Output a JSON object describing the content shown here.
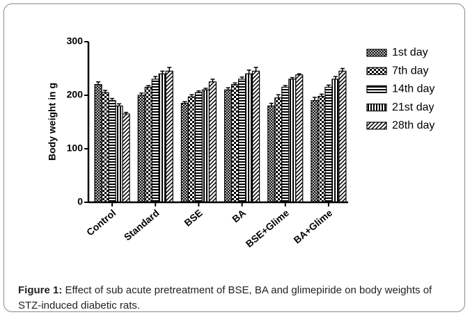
{
  "chart_data": {
    "type": "bar",
    "y_label": "Body weight in g",
    "categories": [
      "Control",
      "Standard",
      "BSE",
      "BA",
      "BSE+Glime",
      "BA+Glime"
    ],
    "series": [
      {
        "name": "1st day",
        "color": "#000000",
        "values": [
          220,
          200,
          185,
          210,
          180,
          190
        ],
        "errors": [
          5,
          4,
          3,
          4,
          5,
          6
        ]
      },
      {
        "name": "7th day",
        "color": "#000000",
        "values": [
          205,
          215,
          197,
          220,
          195,
          198
        ],
        "errors": [
          4,
          3,
          4,
          3,
          6,
          4
        ]
      },
      {
        "name": "14th day",
        "color": "#000000",
        "values": [
          190,
          230,
          205,
          230,
          215,
          215
        ],
        "errors": [
          4,
          5,
          3,
          4,
          3,
          4
        ]
      },
      {
        "name": "21st day",
        "color": "#000000",
        "values": [
          180,
          240,
          210,
          240,
          230,
          230
        ],
        "errors": [
          4,
          5,
          3,
          7,
          3,
          5
        ]
      },
      {
        "name": "28th day",
        "color": "#000000",
        "values": [
          165,
          245,
          225,
          245,
          238,
          245
        ],
        "errors": [
          3,
          7,
          5,
          7,
          2,
          5
        ]
      }
    ],
    "ylim": [
      0,
      300
    ],
    "yticks": [
      0,
      100,
      200,
      300
    ],
    "grid": false,
    "legend": "right"
  },
  "caption": {
    "label": "Figure 1:",
    "text": "Effect of sub acute pretreatment of BSE, BA and glimepiride on body weights of STZ-induced diabetic rats."
  }
}
